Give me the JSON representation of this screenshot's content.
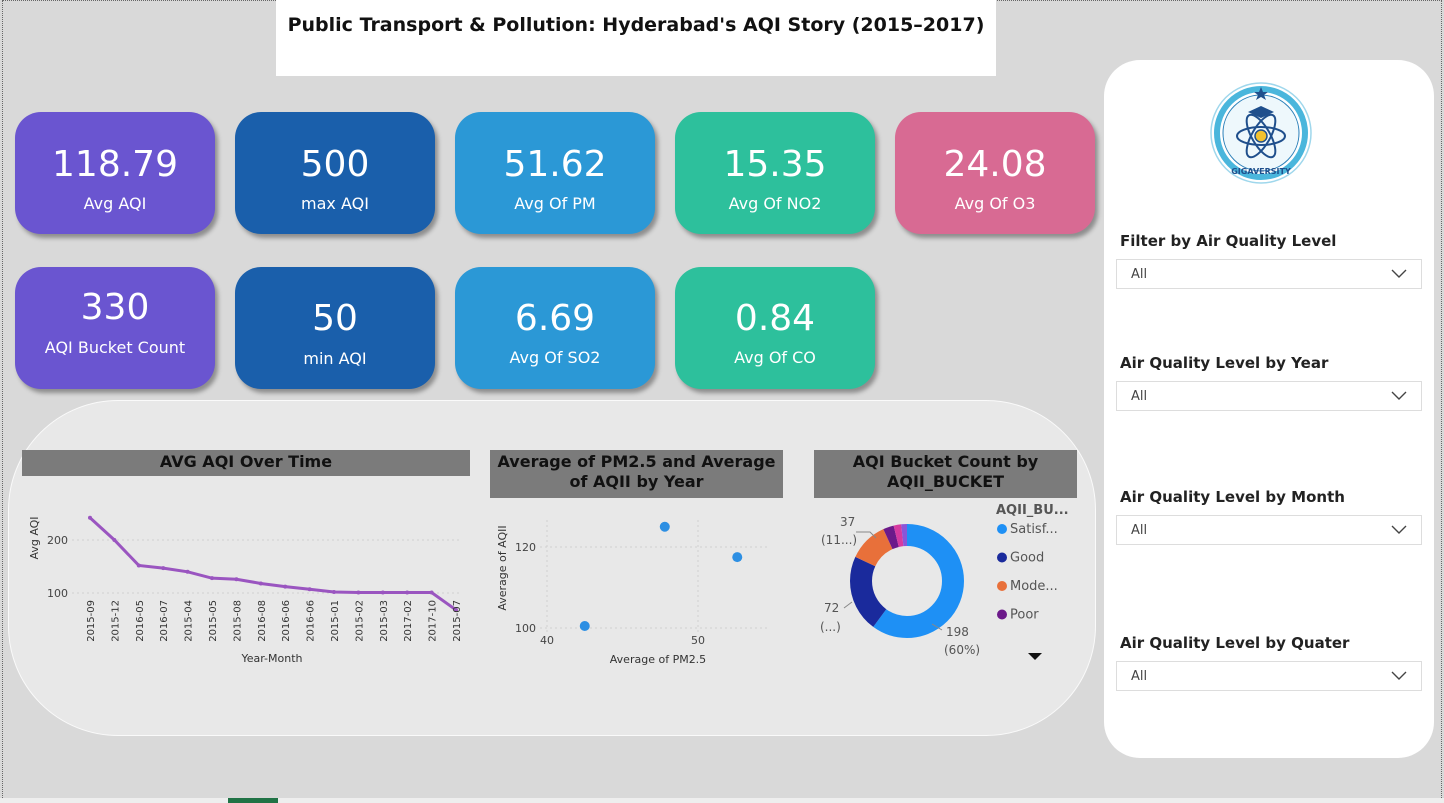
{
  "title": "Public Transport & Pollution: Hyderabad's AQI Story (2015–2017)",
  "kpis": [
    {
      "value": "118.79",
      "label": "Avg AQI"
    },
    {
      "value": "500",
      "label": "max AQI"
    },
    {
      "value": "51.62",
      "label": "Avg Of PM"
    },
    {
      "value": "15.35",
      "label": "Avg Of NO2"
    },
    {
      "value": "24.08",
      "label": "Avg Of O3"
    },
    {
      "value": "330",
      "label": "AQI Bucket Count"
    },
    {
      "value": "50",
      "label": "min AQI"
    },
    {
      "value": "6.69",
      "label": "Avg Of SO2"
    },
    {
      "value": "0.84",
      "label": "Avg Of CO"
    }
  ],
  "logo": {
    "text": "GIGAVERSITY"
  },
  "filters": [
    {
      "label": "Filter by Air Quality Level",
      "value": "All"
    },
    {
      "label": "Air Quality Level by Year",
      "value": "All"
    },
    {
      "label": "Air Quality Level by Month",
      "value": "All"
    },
    {
      "label": "Air Quality Level by Quater",
      "value": "All"
    }
  ],
  "chart_data": [
    {
      "type": "line",
      "title": "AVG AQI Over Time",
      "xlabel": "Year-Month",
      "ylabel": "Avg AQI",
      "categories": [
        "2015-09",
        "2015-12",
        "2016-05",
        "2016-07",
        "2015-04",
        "2015-05",
        "2015-08",
        "2016-08",
        "2016-06",
        "2016-06",
        "2015-01",
        "2015-02",
        "2015-03",
        "2017-02",
        "2017-10",
        "2015-07"
      ],
      "values": [
        242,
        200,
        152,
        147,
        140,
        128,
        126,
        118,
        112,
        107,
        102,
        101,
        101,
        101,
        101,
        68
      ],
      "yticks": [
        100,
        200
      ],
      "color": "#9a55c0"
    },
    {
      "type": "scatter",
      "title": "Average of PM2.5 and Average of AQII by Year",
      "xlabel": "Average of PM2.5",
      "ylabel": "Average of AQII",
      "points": [
        [
          42.5,
          100.5
        ],
        [
          47.8,
          125
        ],
        [
          52.6,
          117.5
        ]
      ],
      "xticks": [
        40,
        50
      ],
      "yticks": [
        100,
        120
      ],
      "xlim": [
        39,
        63
      ],
      "ylim": [
        98,
        132
      ],
      "color": "#2d8fe3"
    },
    {
      "type": "pie",
      "title": "AQI Bucket Count by AQII_BUCKET",
      "legend_title": "AQII_BU...",
      "slices": [
        {
          "name": "Satisf...",
          "value": 198,
          "color": "#1e90f5"
        },
        {
          "name": "Good",
          "value": 72,
          "color": "#1a2a9c"
        },
        {
          "name": "Mode...",
          "value": 37,
          "color": "#e8703a"
        },
        {
          "name": "Poor",
          "value": 10,
          "color": "#6c1a8a"
        },
        {
          "name": "",
          "value": 7,
          "color": "#d63aa0"
        },
        {
          "name": "",
          "value": 6,
          "color": "#8a55d8"
        }
      ],
      "labels": [
        {
          "line1": "37",
          "line2": "(11...)"
        },
        {
          "line1": "72",
          "line2": "(...)"
        },
        {
          "line1": "198",
          "line2": "(60%)"
        }
      ]
    }
  ]
}
